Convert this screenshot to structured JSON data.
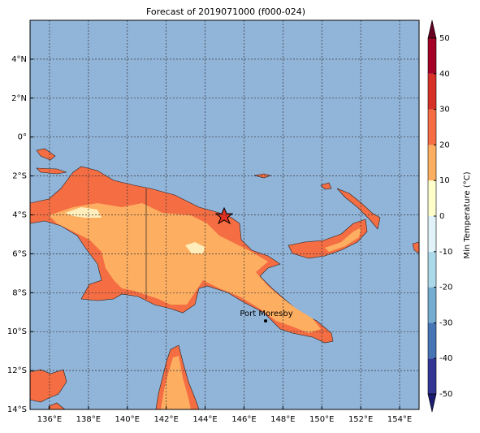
{
  "title": "Forecast of 2019071000 (f000-024)",
  "map": {
    "xlim": [
      135,
      155
    ],
    "ylim": [
      -14,
      6
    ],
    "grid": true,
    "xticks": [
      {
        "value": 136,
        "label": "136°E"
      },
      {
        "value": 138,
        "label": "138°E"
      },
      {
        "value": 140,
        "label": "140°E"
      },
      {
        "value": 142,
        "label": "142°E"
      },
      {
        "value": 144,
        "label": "144°E"
      },
      {
        "value": 146,
        "label": "146°E"
      },
      {
        "value": 148,
        "label": "148°E"
      },
      {
        "value": 150,
        "label": "150°E"
      },
      {
        "value": 152,
        "label": "152°E"
      },
      {
        "value": 154,
        "label": "154°E"
      }
    ],
    "yticks": [
      {
        "value": 4,
        "label": "4°N"
      },
      {
        "value": 2,
        "label": "2°N"
      },
      {
        "value": 0,
        "label": "0°"
      },
      {
        "value": -2,
        "label": "2°S"
      },
      {
        "value": -4,
        "label": "4°S"
      },
      {
        "value": -6,
        "label": "6°S"
      },
      {
        "value": -8,
        "label": "8°S"
      },
      {
        "value": -10,
        "label": "10°S"
      },
      {
        "value": -12,
        "label": "12°S"
      },
      {
        "value": -14,
        "label": "14°S"
      }
    ],
    "city": "Port Moresby"
  },
  "colorbar": {
    "label": "Min Temperature (°C)",
    "lim": [
      -50,
      50
    ],
    "ticks": [
      -50,
      -40,
      -30,
      -20,
      -10,
      0,
      10,
      20,
      30,
      40,
      50
    ],
    "colors": [
      "#313695",
      "#4575b4",
      "#74add1",
      "#abd9e9",
      "#e0f3f8",
      "#ffffcc",
      "#fdae61",
      "#f46d43",
      "#d73027",
      "#a50026"
    ],
    "extend_colors": [
      "#1b1b70",
      "#67001f"
    ]
  }
}
